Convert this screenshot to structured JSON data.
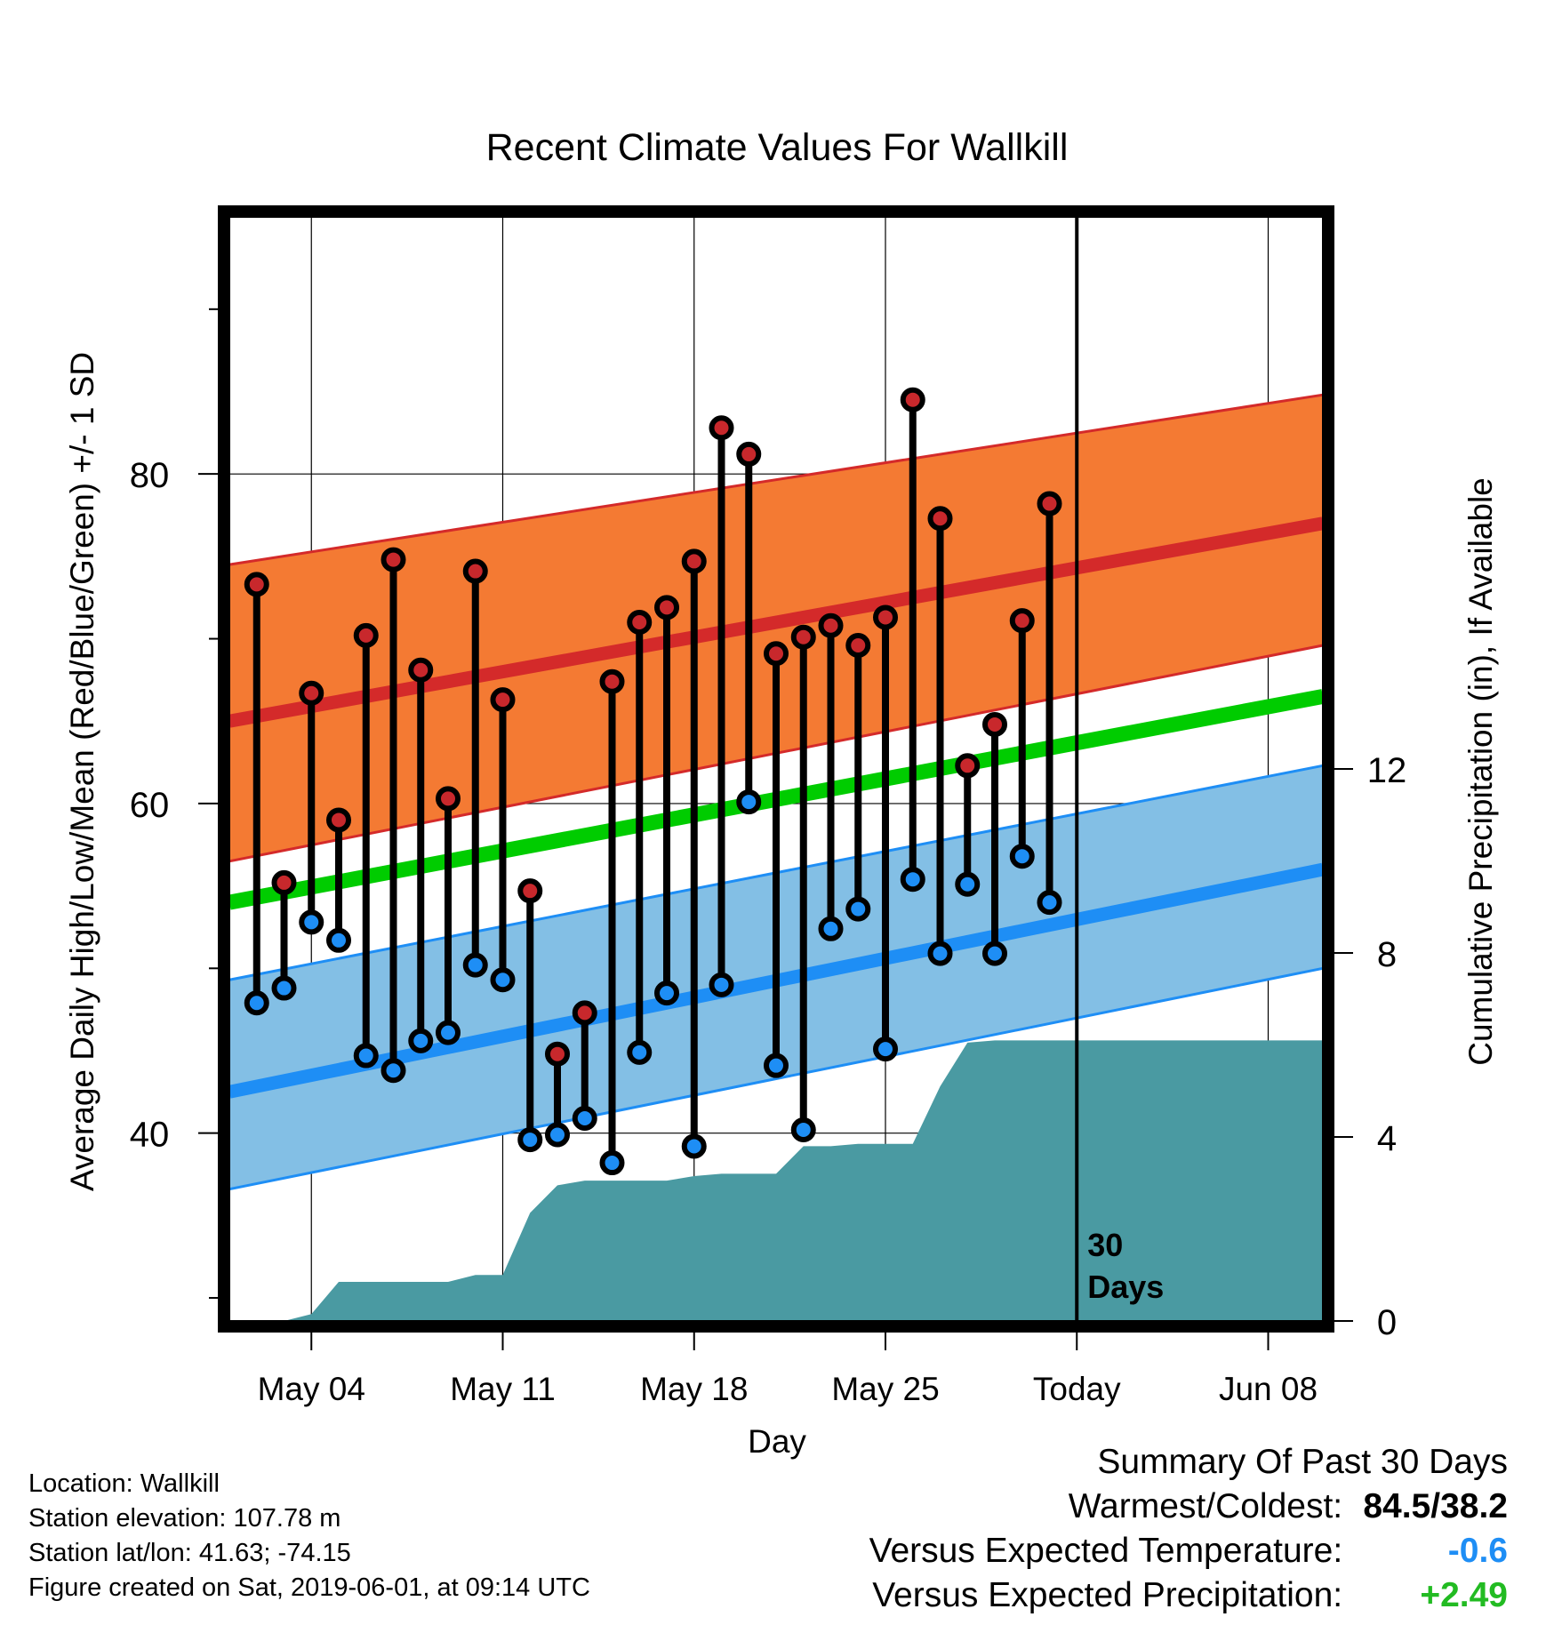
{
  "chart_data": {
    "type": "line",
    "title": "Recent Climate Values For Wallkill",
    "xlabel": "Day",
    "ylabel_left": "Average Daily High/Low/Mean (Red/Blue/Green) +/- 1 SD",
    "ylabel_right": "Cumulative Precipitation (in), If Available",
    "x_ticks": [
      {
        "day": 3,
        "label": "May 04"
      },
      {
        "day": 10,
        "label": "May 11"
      },
      {
        "day": 17,
        "label": "May 18"
      },
      {
        "day": 24,
        "label": "May 25"
      },
      {
        "day": 31,
        "label": "Today"
      },
      {
        "day": 38,
        "label": "Jun 08"
      }
    ],
    "xlim": [
      0,
      40
    ],
    "ylim_left": [
      28.6,
      95.6
    ],
    "yticks_left": [
      40,
      60,
      80
    ],
    "ylim_right": [
      0,
      24
    ],
    "yticks_right": [
      0,
      4,
      8,
      12
    ],
    "today_day": 31,
    "today_label_line1": "30",
    "today_label_line2": "Days",
    "normals": {
      "x": [
        0,
        40
      ],
      "high_mean": [
        65.0,
        77.0
      ],
      "high_upper": [
        74.5,
        84.8
      ],
      "high_lower": [
        56.5,
        69.6
      ],
      "mean": [
        54.0,
        66.5
      ],
      "low_mean": [
        42.5,
        56.0
      ],
      "low_upper": [
        49.3,
        62.3
      ],
      "low_lower": [
        36.6,
        50.0
      ]
    },
    "days": [
      1,
      2,
      3,
      4,
      5,
      6,
      7,
      8,
      9,
      10,
      11,
      12,
      13,
      14,
      15,
      16,
      17,
      18,
      19,
      20,
      21,
      22,
      23,
      24,
      25,
      26,
      27,
      28,
      29,
      30
    ],
    "series": [
      {
        "name": "High",
        "values": [
          73.3,
          55.2,
          66.7,
          59.0,
          70.2,
          74.8,
          68.1,
          60.3,
          74.1,
          66.3,
          54.7,
          44.8,
          47.3,
          67.4,
          71.0,
          71.9,
          74.7,
          82.8,
          81.2,
          69.1,
          70.1,
          70.8,
          69.6,
          71.3,
          84.5,
          77.3,
          62.3,
          64.8,
          71.1,
          78.2
        ]
      },
      {
        "name": "Low",
        "values": [
          47.9,
          48.8,
          52.8,
          51.7,
          44.7,
          43.8,
          45.6,
          46.1,
          50.2,
          49.3,
          39.6,
          39.9,
          40.9,
          38.2,
          44.9,
          48.5,
          39.2,
          49.0,
          60.1,
          44.1,
          40.2,
          52.4,
          53.6,
          45.1,
          55.4,
          50.9,
          55.1,
          50.9,
          56.8,
          54.0
        ]
      },
      {
        "name": "Cumulative Precipitation",
        "x": [
          0,
          1,
          2,
          3,
          4,
          5,
          6,
          7,
          8,
          9,
          10,
          11,
          12,
          13,
          14,
          15,
          16,
          17,
          18,
          19,
          20,
          21,
          22,
          23,
          24,
          25,
          26,
          27,
          28,
          29,
          30,
          40
        ],
        "values": [
          0,
          0,
          0,
          0.15,
          0.85,
          0.85,
          0.85,
          0.85,
          0.85,
          1.0,
          1.0,
          2.35,
          2.95,
          3.05,
          3.05,
          3.05,
          3.05,
          3.15,
          3.2,
          3.2,
          3.2,
          3.8,
          3.8,
          3.85,
          3.85,
          3.85,
          5.1,
          6.05,
          6.1,
          6.1,
          6.1,
          6.1
        ]
      }
    ],
    "colors": {
      "high_band": "#f47a33",
      "high_line": "#d42a2a",
      "mean_line": "#00cc00",
      "low_band": "#83bfe5",
      "low_line": "#1e8ef5",
      "precip_fill": "#4a9aa2",
      "high_marker": "#c8282c",
      "low_marker": "#1e8ef5"
    }
  },
  "footer": {
    "location": "Location: Wallkill",
    "elevation": "Station elevation: 107.78 m",
    "latlon": "Station lat/lon: 41.63; -74.15",
    "created": "Figure created on Sat, 2019-06-01, at 09:14 UTC"
  },
  "summary": {
    "title": "Summary Of Past 30 Days",
    "warm_cold_label": "Warmest/Coldest:",
    "warm_cold_value": "84.5/38.2",
    "temp_label": "Versus Expected Temperature:",
    "temp_value": "-0.6",
    "temp_color": "#1e8ef5",
    "precip_label": "Versus Expected Precipitation:",
    "precip_value": "+2.49",
    "precip_color": "#22bb22"
  }
}
